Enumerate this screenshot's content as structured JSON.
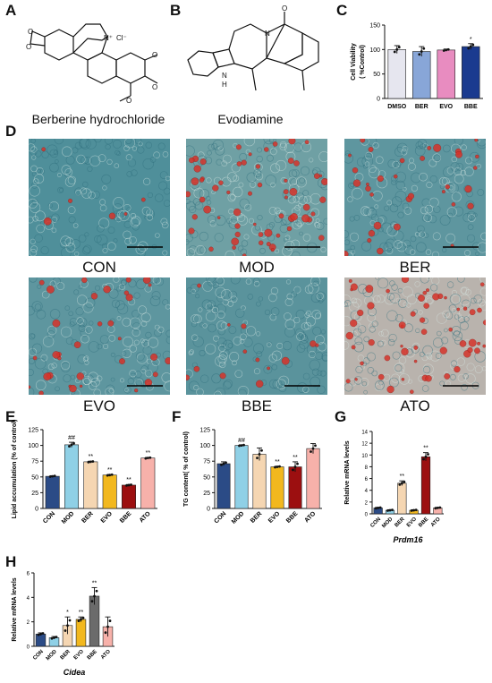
{
  "panel_letters": [
    "A",
    "B",
    "C",
    "D",
    "E",
    "F",
    "G",
    "H"
  ],
  "structures": {
    "A": {
      "name": "Berberine hydrochloride",
      "atoms": {
        "cation": "N⁺",
        "anion": "Cl⁻"
      }
    },
    "B": {
      "name": "Evodiamine",
      "atoms": {
        "amine": "N",
        "methylated_amine": "N",
        "hydrogen": "H",
        "carbonyl_o": "O"
      }
    }
  },
  "micrographs": [
    {
      "label": "CON",
      "red_density": 0.05,
      "tone": "#4f8f9a"
    },
    {
      "label": "MOD",
      "red_density": 0.55,
      "tone": "#6fa0a4"
    },
    {
      "label": "BER",
      "red_density": 0.3,
      "tone": "#5e969f"
    },
    {
      "label": "EVO",
      "red_density": 0.3,
      "tone": "#5e969f"
    },
    {
      "label": "BBE",
      "red_density": 0.12,
      "tone": "#5a939c"
    },
    {
      "label": "ATO",
      "red_density": 0.5,
      "tone": "#b9b3ad"
    }
  ],
  "colors": {
    "CON": "#2b4b86",
    "MOD": "#8fd0e6",
    "BER": "#f5d6b2",
    "EVO": "#f2b81e",
    "BBE": "#9c0f10",
    "ATO": "#f7b1aa",
    "DMSO": "#e6e6ef",
    "C_BER": "#88a6d8",
    "C_EVO": "#e88cc0",
    "C_BBE": "#1a3a8f",
    "H_CON": "#2b4b86",
    "H_MOD": "#8fd0e6",
    "H_BER": "#f5d6b2",
    "H_EVO": "#f2b81e",
    "H_BBE": "#6b6b6b",
    "H_ATO": "#f7b1aa"
  },
  "chart_data": [
    {
      "panel": "C",
      "type": "bar",
      "categories": [
        "DMSO",
        "BER",
        "EVO",
        "BBE"
      ],
      "values": [
        100,
        96,
        99,
        106
      ],
      "errors": [
        8,
        10,
        2,
        6
      ],
      "annotations": [
        "",
        "",
        "",
        "*"
      ],
      "ylabel": "Cell Viability\n( %Control)",
      "yticks": [
        0,
        50,
        100,
        150
      ],
      "ylim": [
        0,
        150
      ]
    },
    {
      "panel": "E",
      "type": "bar",
      "categories": [
        "CON",
        "MOD",
        "BER",
        "EVO",
        "BBE",
        "ATO"
      ],
      "values": [
        51,
        101,
        74,
        53,
        37,
        80
      ],
      "errors": [
        1,
        4,
        1,
        1,
        1,
        1
      ],
      "annotations": [
        "",
        "##",
        "**",
        "**",
        "**",
        "**"
      ],
      "ylabel": "Lipid accumulation (% of control)",
      "yticks": [
        0,
        25,
        50,
        75,
        100,
        125
      ],
      "ylim": [
        0,
        125
      ]
    },
    {
      "panel": "F",
      "type": "bar",
      "categories": [
        "CON",
        "MOD",
        "BER",
        "EVO",
        "BBE",
        "ATO"
      ],
      "values": [
        71,
        100,
        86,
        66,
        66,
        95
      ],
      "errors": [
        3,
        1,
        10,
        1,
        8,
        8
      ],
      "annotations": [
        "",
        "##",
        "",
        "**",
        "**",
        ""
      ],
      "ylabel": "TG content( % of control)",
      "yticks": [
        0,
        25,
        50,
        75,
        100,
        125
      ],
      "ylim": [
        0,
        125
      ]
    },
    {
      "panel": "G",
      "type": "bar",
      "categories": [
        "CON",
        "MOD",
        "BER",
        "EVO",
        "BBE",
        "ATO"
      ],
      "values": [
        1.0,
        0.6,
        5.2,
        0.6,
        9.7,
        1.0
      ],
      "errors": [
        0.1,
        0.1,
        0.4,
        0.1,
        0.7,
        0.1
      ],
      "annotations": [
        "",
        "",
        "**",
        "",
        "**",
        ""
      ],
      "ylabel": "Relative mRNA levels",
      "xlabel": "Prdm16",
      "yticks": [
        0,
        2,
        4,
        6,
        8,
        10,
        12,
        14
      ],
      "ylim": [
        0,
        14
      ]
    },
    {
      "panel": "H",
      "type": "bar",
      "categories": [
        "CON",
        "MOD",
        "BER",
        "EVO",
        "BBE",
        "ATO"
      ],
      "values": [
        1.0,
        0.7,
        1.7,
        2.2,
        4.1,
        1.6
      ],
      "errors": [
        0.1,
        0.1,
        0.7,
        0.2,
        0.7,
        0.8
      ],
      "annotations": [
        "",
        "",
        "*",
        "**",
        "**",
        ""
      ],
      "ylabel": "Relative mRNA levels",
      "xlabel": "Cidea",
      "yticks": [
        0,
        2,
        4,
        6
      ],
      "ylim": [
        0,
        6
      ]
    }
  ]
}
